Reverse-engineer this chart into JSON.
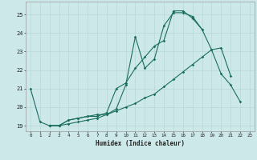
{
  "xlabel": "Humidex (Indice chaleur)",
  "bg_color": "#cce8e8",
  "grid_color": "#b8d8d8",
  "line_color": "#1a6e5e",
  "xlim": [
    -0.5,
    23.5
  ],
  "ylim": [
    18.7,
    25.7
  ],
  "yticks": [
    19,
    20,
    21,
    22,
    23,
    24,
    25
  ],
  "xticks": [
    0,
    1,
    2,
    3,
    4,
    5,
    6,
    7,
    8,
    9,
    10,
    11,
    12,
    13,
    14,
    15,
    16,
    17,
    18,
    19,
    20,
    21,
    22,
    23
  ],
  "line1_x": [
    0,
    1,
    2,
    3,
    4,
    5,
    6,
    7,
    8,
    9,
    10,
    11,
    12,
    13,
    14,
    15,
    16,
    17,
    18,
    19,
    20,
    21
  ],
  "line1_y": [
    21.0,
    19.2,
    19.0,
    19.0,
    19.1,
    19.2,
    19.3,
    19.4,
    19.6,
    19.8,
    20.0,
    20.2,
    20.5,
    20.7,
    21.1,
    21.5,
    21.9,
    22.3,
    22.7,
    23.1,
    23.2,
    21.7
  ],
  "line2_x": [
    2,
    3,
    4,
    5,
    6,
    7,
    8,
    9,
    10,
    11,
    12,
    13,
    14,
    15,
    16,
    17,
    18
  ],
  "line2_y": [
    19.0,
    19.0,
    19.3,
    19.4,
    19.5,
    19.6,
    19.6,
    19.9,
    21.2,
    23.8,
    22.1,
    22.6,
    24.4,
    25.1,
    25.1,
    24.9,
    24.2
  ],
  "line3_x": [
    2,
    3,
    4,
    5,
    6,
    7,
    8,
    9,
    10,
    11,
    12,
    13,
    14,
    15,
    16,
    17,
    18,
    19,
    20,
    21,
    22
  ],
  "line3_y": [
    19.0,
    19.0,
    19.3,
    19.4,
    19.5,
    19.5,
    19.7,
    21.0,
    21.3,
    22.1,
    22.7,
    23.3,
    23.6,
    25.2,
    25.2,
    24.8,
    24.2,
    23.1,
    21.8,
    21.2,
    20.3
  ]
}
